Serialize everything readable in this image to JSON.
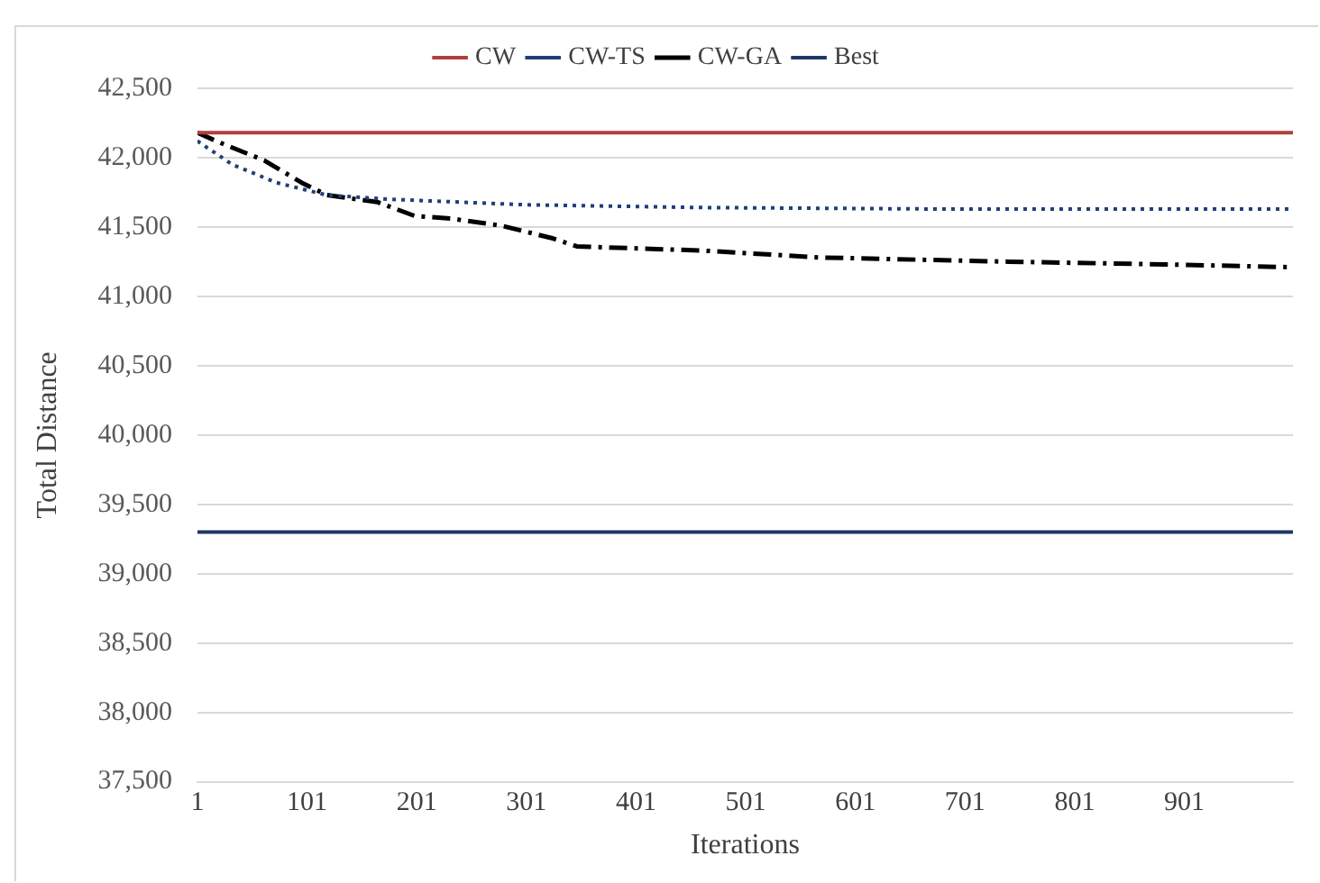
{
  "chart_data": {
    "type": "line",
    "xlabel": "Iterations",
    "ylabel": "Total Distance",
    "xlim": [
      1,
      1000
    ],
    "xticks": [
      1,
      101,
      201,
      301,
      401,
      501,
      601,
      701,
      801,
      901
    ],
    "ylim": [
      37500,
      42500
    ],
    "yticks": [
      {
        "value": 37500,
        "label": "37,500"
      },
      {
        "value": 38000,
        "label": "38,000"
      },
      {
        "value": 38500,
        "label": "38,500"
      },
      {
        "value": 39000,
        "label": "39,000"
      },
      {
        "value": 39500,
        "label": "39,500"
      },
      {
        "value": 40000,
        "label": "40,000"
      },
      {
        "value": 40500,
        "label": "40,500"
      },
      {
        "value": 41000,
        "label": "41,000"
      },
      {
        "value": 41500,
        "label": "41,500"
      },
      {
        "value": 42000,
        "label": "42,000"
      },
      {
        "value": 42500,
        "label": "42,500"
      }
    ],
    "grid": "y",
    "legend": "top",
    "marker": "none",
    "series": [
      {
        "name": "CW",
        "color": "#b0403c",
        "line_style": "solid",
        "x": [
          1,
          1000
        ],
        "values": [
          42180,
          42180
        ]
      },
      {
        "name": "CW-TS",
        "color": "#1f3f7a",
        "line_style": "dotted",
        "x": [
          1,
          33,
          73,
          119,
          176,
          301,
          461,
          666,
          1000
        ],
        "values": [
          42120,
          41950,
          41820,
          41730,
          41700,
          41660,
          41640,
          41630,
          41630
        ]
      },
      {
        "name": "CW-GA",
        "color": "#000000",
        "line_style": "dashdot",
        "x": [
          1,
          21,
          62,
          96,
          119,
          165,
          199,
          233,
          278,
          324,
          347,
          461,
          569,
          740,
          883,
          1000
        ],
        "values": [
          42180,
          42110,
          41980,
          41820,
          41730,
          41680,
          41580,
          41560,
          41510,
          41420,
          41360,
          41330,
          41280,
          41250,
          41230,
          41210
        ]
      },
      {
        "name": "Best",
        "color": "#1f3864",
        "line_style": "solid",
        "x": [
          1,
          1000
        ],
        "values": [
          39300,
          39300
        ]
      }
    ]
  }
}
